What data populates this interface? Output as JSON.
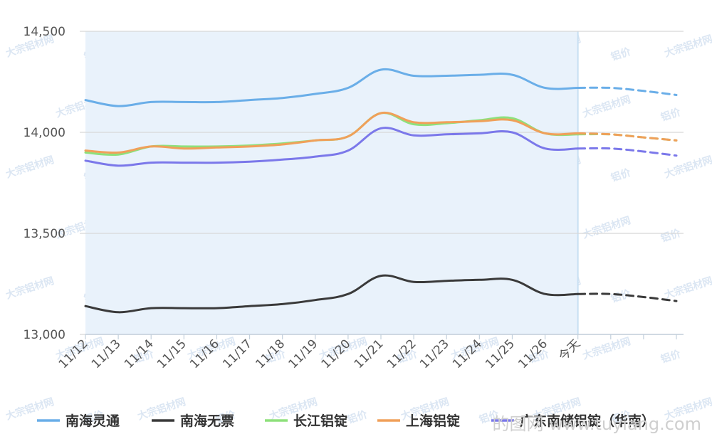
{
  "chart_data": {
    "type": "line",
    "title": "",
    "xlabel": "",
    "ylabel": "",
    "categories": [
      "11/12",
      "11/13",
      "11/14",
      "11/15",
      "11/16",
      "11/17",
      "11/18",
      "11/19",
      "11/20",
      "11/21",
      "11/22",
      "11/23",
      "11/24",
      "11/25",
      "11/26",
      "今天",
      "",
      "",
      ""
    ],
    "ylim": [
      13000,
      14500
    ],
    "yticks": [
      13000,
      13500,
      14000,
      14500
    ],
    "ytick_labels": [
      "13,000",
      "13,500",
      "14,000",
      "14,500"
    ],
    "grid": true,
    "legend_position": "bottom",
    "history_shading": "light blue band from 11/12 to 今天",
    "forecast": "dashed segment from 今天 to last point",
    "series": [
      {
        "name": "南海灵通",
        "color": "#6aaee8",
        "values": [
          14160,
          14130,
          14150,
          14150,
          14150,
          14160,
          14170,
          14190,
          14220,
          14310,
          14280,
          14280,
          14285,
          14285,
          14220,
          14220,
          14220,
          14205,
          14185
        ]
      },
      {
        "name": "南海无票",
        "color": "#3a3a3a",
        "values": [
          13140,
          13110,
          13130,
          13130,
          13130,
          13140,
          13150,
          13170,
          13200,
          13290,
          13260,
          13265,
          13270,
          13270,
          13200,
          13200,
          13200,
          13185,
          13165
        ]
      },
      {
        "name": "长江铝锭",
        "color": "#8ee07c",
        "values": [
          13900,
          13890,
          13930,
          13930,
          13930,
          13935,
          13945,
          13960,
          13980,
          14095,
          14040,
          14045,
          14060,
          14070,
          13995,
          13990,
          13990,
          13975,
          13960
        ]
      },
      {
        "name": "上海铝锭",
        "color": "#f0a05a",
        "values": [
          13910,
          13900,
          13930,
          13920,
          13925,
          13930,
          13940,
          13960,
          13980,
          14095,
          14050,
          14050,
          14055,
          14060,
          13995,
          13995,
          13990,
          13975,
          13960
        ]
      },
      {
        "name": "广东南储铝锭（华南）",
        "color": "#7b78ea",
        "values": [
          13860,
          13835,
          13850,
          13850,
          13850,
          13855,
          13865,
          13880,
          13910,
          14020,
          13985,
          13990,
          13995,
          14000,
          13920,
          13920,
          13920,
          13905,
          13885
        ]
      }
    ]
  },
  "watermark": {
    "texts": [
      "大宗铝材网",
      "铝价"
    ],
    "corner": "的图网  www.tuyiang.com"
  },
  "colors": {
    "band": "#e9f2fb",
    "band_edge": "#c7dff2",
    "grid": "#d8d8d8",
    "axis": "#c3d0dc"
  }
}
